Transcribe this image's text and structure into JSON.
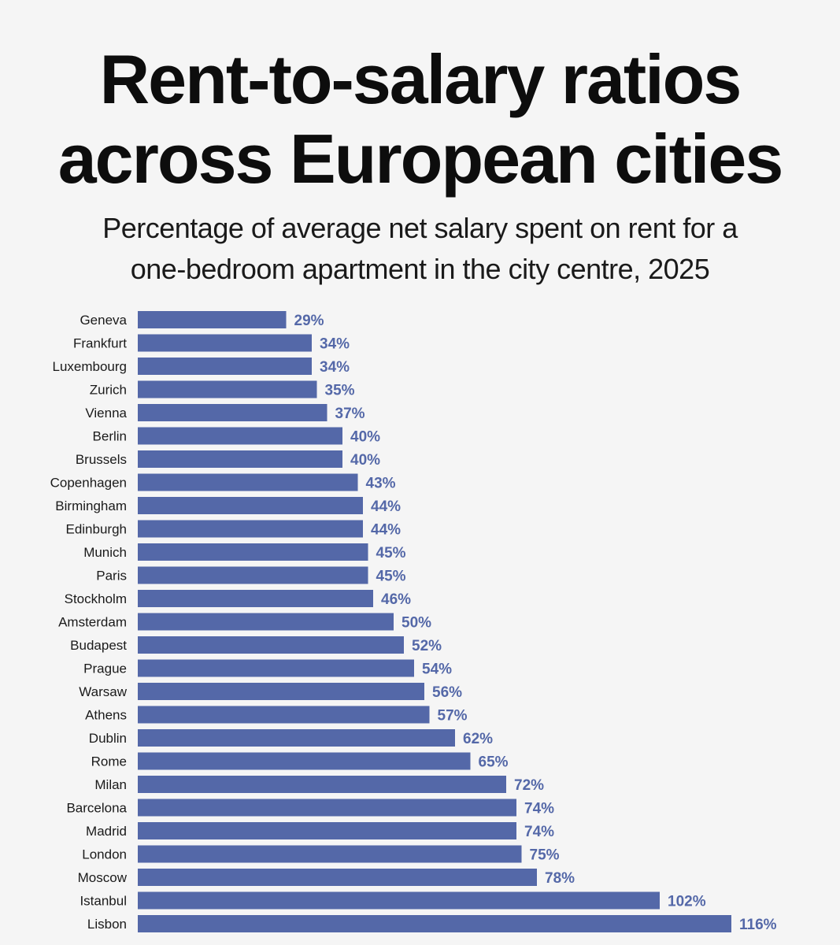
{
  "title": {
    "line1": "Rent-to-salary ratios",
    "line2": "across European cities"
  },
  "subtitle": {
    "line1": "Percentage of average net salary spent on rent for a",
    "line2": "one-bedroom apartment in the city centre, 2025"
  },
  "colors": {
    "bar": "#5468a8",
    "value_label": "#5468a8",
    "category_label": "#1a1a1a",
    "background": "#f5f5f5"
  },
  "chart_data": {
    "type": "bar",
    "orientation": "horizontal",
    "categories": [
      "Geneva",
      "Frankfurt",
      "Luxembourg",
      "Zurich",
      "Vienna",
      "Berlin",
      "Brussels",
      "Copenhagen",
      "Birmingham",
      "Edinburgh",
      "Munich",
      "Paris",
      "Stockholm",
      "Amsterdam",
      "Budapest",
      "Prague",
      "Warsaw",
      "Athens",
      "Dublin",
      "Rome",
      "Milan",
      "Barcelona",
      "Madrid",
      "London",
      "Moscow",
      "Istanbul",
      "Lisbon"
    ],
    "values": [
      29,
      34,
      34,
      35,
      37,
      40,
      40,
      43,
      44,
      44,
      45,
      45,
      46,
      50,
      52,
      54,
      56,
      57,
      62,
      65,
      72,
      74,
      74,
      75,
      78,
      102,
      116
    ],
    "value_labels": [
      "29%",
      "34%",
      "34%",
      "35%",
      "37%",
      "40%",
      "40%",
      "43%",
      "44%",
      "44%",
      "45%",
      "45%",
      "46%",
      "50%",
      "52%",
      "54%",
      "56%",
      "57%",
      "62%",
      "65%",
      "72%",
      "74%",
      "74%",
      "75%",
      "78%",
      "102%",
      "116%"
    ],
    "title": "Rent-to-salary ratios across European cities",
    "subtitle": "Percentage of average net salary spent on rent for a one-bedroom apartment in the city centre, 2025",
    "xlabel": "",
    "ylabel": "",
    "xlim": [
      0,
      116
    ],
    "grid": false,
    "legend": "none"
  }
}
